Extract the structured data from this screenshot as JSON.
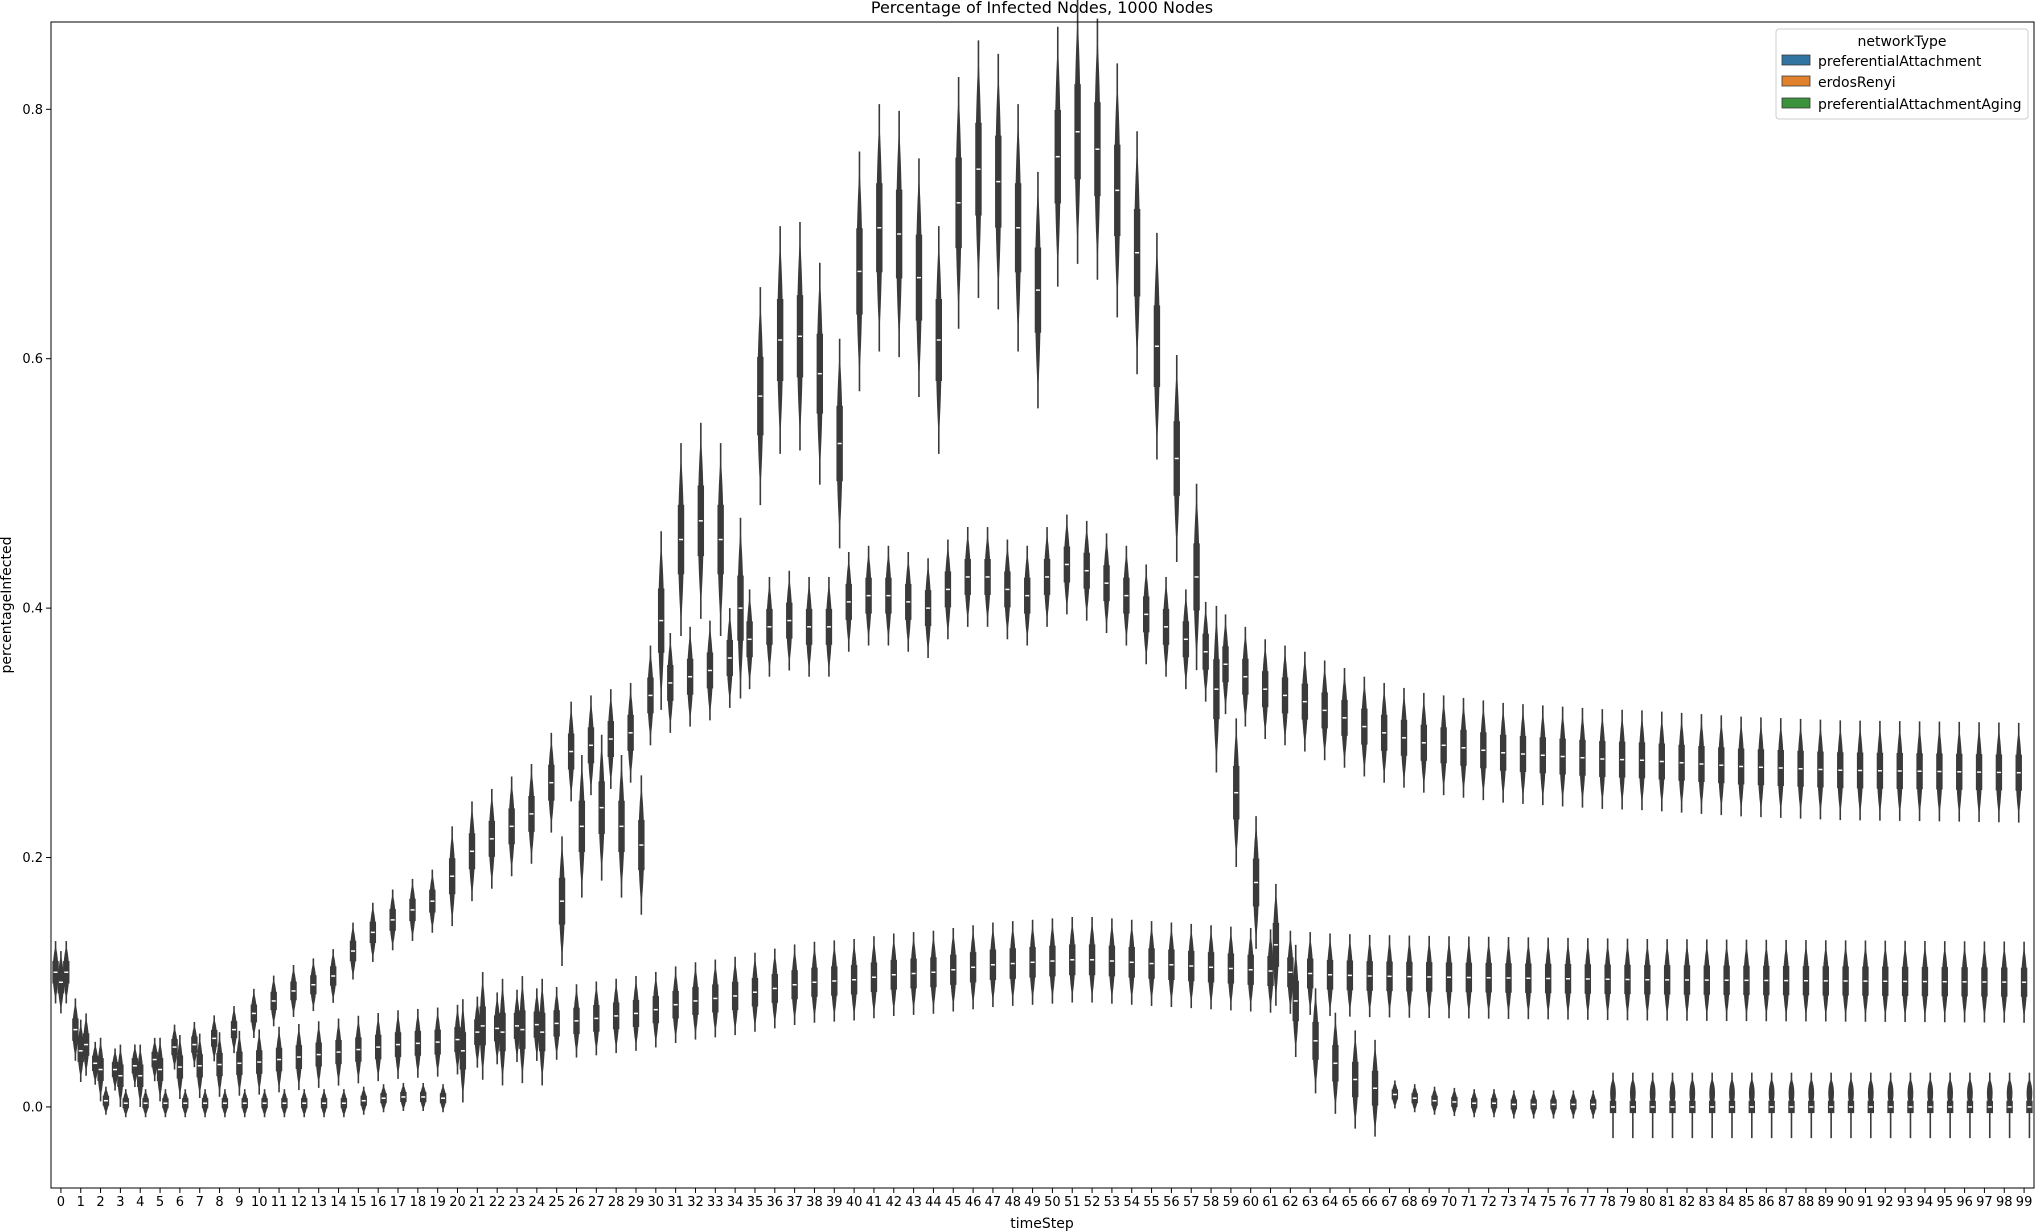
{
  "chart_data": {
    "type": "violin",
    "title": "Percentage of Infected Nodes, 1000 Nodes",
    "xlabel": "timeStep",
    "ylabel": "percentageInfected",
    "ylim": [
      -0.065,
      0.87
    ],
    "yticks": [
      "0.0",
      "0.2",
      "0.4",
      "0.6",
      "0.8"
    ],
    "ytick_values": [
      0.0,
      0.2,
      0.4,
      0.6,
      0.8
    ],
    "legend": {
      "title": "networkType",
      "placement": "top-right",
      "entries": [
        {
          "name": "preferentialAttachment",
          "color": "#3274a1"
        },
        {
          "name": "erdosRenyi",
          "color": "#e1812c"
        },
        {
          "name": "preferentialAttachmentAging",
          "color": "#3a923a"
        }
      ]
    },
    "violin_color": "#3a3a3a",
    "series": [
      {
        "name": "preferentialAttachment",
        "keyframes": [
          [
            0,
            0.108
          ],
          [
            1,
            0.062
          ],
          [
            2,
            0.035
          ],
          [
            3,
            0.03
          ],
          [
            4,
            0.033
          ],
          [
            5,
            0.038
          ],
          [
            6,
            0.048
          ],
          [
            7,
            0.05
          ],
          [
            8,
            0.055
          ],
          [
            9,
            0.062
          ],
          [
            10,
            0.075
          ],
          [
            11,
            0.085
          ],
          [
            12,
            0.093
          ],
          [
            13,
            0.098
          ],
          [
            14,
            0.105
          ],
          [
            15,
            0.125
          ],
          [
            16,
            0.14
          ],
          [
            17,
            0.15
          ],
          [
            18,
            0.158
          ],
          [
            19,
            0.165
          ],
          [
            20,
            0.185
          ],
          [
            21,
            0.205
          ],
          [
            22,
            0.215
          ],
          [
            23,
            0.225
          ],
          [
            24,
            0.235
          ],
          [
            25,
            0.26
          ],
          [
            26,
            0.285
          ],
          [
            27,
            0.29
          ],
          [
            28,
            0.295
          ],
          [
            29,
            0.3
          ],
          [
            30,
            0.33
          ],
          [
            31,
            0.34
          ],
          [
            32,
            0.345
          ],
          [
            33,
            0.35
          ],
          [
            34,
            0.36
          ],
          [
            35,
            0.375
          ],
          [
            36,
            0.385
          ],
          [
            37,
            0.39
          ],
          [
            38,
            0.385
          ],
          [
            39,
            0.385
          ],
          [
            40,
            0.405
          ],
          [
            41,
            0.41
          ],
          [
            42,
            0.41
          ],
          [
            43,
            0.405
          ],
          [
            44,
            0.4
          ],
          [
            45,
            0.415
          ],
          [
            46,
            0.425
          ],
          [
            47,
            0.425
          ],
          [
            48,
            0.415
          ],
          [
            49,
            0.41
          ],
          [
            50,
            0.425
          ],
          [
            51,
            0.435
          ],
          [
            52,
            0.43
          ],
          [
            53,
            0.42
          ],
          [
            54,
            0.41
          ],
          [
            55,
            0.395
          ],
          [
            56,
            0.385
          ],
          [
            57,
            0.375
          ],
          [
            58,
            0.365
          ],
          [
            59,
            0.355
          ],
          [
            60,
            0.345
          ],
          [
            61,
            0.335
          ],
          [
            62,
            0.33
          ],
          [
            63,
            0.325
          ],
          [
            64,
            0.318
          ],
          [
            65,
            0.312
          ],
          [
            66,
            0.305
          ],
          [
            67,
            0.3
          ],
          [
            68,
            0.296
          ],
          [
            69,
            0.292
          ],
          [
            70,
            0.29
          ],
          [
            71,
            0.288
          ],
          [
            72,
            0.286
          ],
          [
            73,
            0.284
          ],
          [
            74,
            0.283
          ],
          [
            75,
            0.282
          ],
          [
            76,
            0.281
          ],
          [
            77,
            0.28
          ],
          [
            78,
            0.279
          ],
          [
            80,
            0.278
          ],
          [
            85,
            0.273
          ],
          [
            90,
            0.27
          ],
          [
            95,
            0.269
          ],
          [
            99,
            0.268
          ]
        ]
      },
      {
        "name": "erdosRenyi",
        "keyframes": [
          [
            0,
            0.1
          ],
          [
            1,
            0.045
          ],
          [
            2,
            0.03
          ],
          [
            3,
            0.025
          ],
          [
            4,
            0.025
          ],
          [
            5,
            0.03
          ],
          [
            6,
            0.032
          ],
          [
            7,
            0.033
          ],
          [
            8,
            0.034
          ],
          [
            9,
            0.035
          ],
          [
            10,
            0.036
          ],
          [
            11,
            0.038
          ],
          [
            12,
            0.04
          ],
          [
            13,
            0.042
          ],
          [
            14,
            0.044
          ],
          [
            15,
            0.046
          ],
          [
            16,
            0.048
          ],
          [
            17,
            0.05
          ],
          [
            18,
            0.051
          ],
          [
            19,
            0.052
          ],
          [
            20,
            0.054
          ],
          [
            21,
            0.06
          ],
          [
            22,
            0.063
          ],
          [
            23,
            0.065
          ],
          [
            24,
            0.066
          ],
          [
            25,
            0.067
          ],
          [
            26,
            0.069
          ],
          [
            27,
            0.071
          ],
          [
            28,
            0.073
          ],
          [
            29,
            0.075
          ],
          [
            30,
            0.078
          ],
          [
            31,
            0.082
          ],
          [
            32,
            0.085
          ],
          [
            33,
            0.087
          ],
          [
            34,
            0.089
          ],
          [
            35,
            0.092
          ],
          [
            36,
            0.095
          ],
          [
            37,
            0.098
          ],
          [
            38,
            0.1
          ],
          [
            39,
            0.101
          ],
          [
            40,
            0.102
          ],
          [
            41,
            0.104
          ],
          [
            42,
            0.106
          ],
          [
            43,
            0.107
          ],
          [
            44,
            0.108
          ],
          [
            45,
            0.11
          ],
          [
            46,
            0.112
          ],
          [
            47,
            0.114
          ],
          [
            48,
            0.115
          ],
          [
            49,
            0.116
          ],
          [
            50,
            0.117
          ],
          [
            51,
            0.118
          ],
          [
            52,
            0.118
          ],
          [
            53,
            0.117
          ],
          [
            54,
            0.116
          ],
          [
            55,
            0.115
          ],
          [
            56,
            0.114
          ],
          [
            57,
            0.113
          ],
          [
            58,
            0.112
          ],
          [
            59,
            0.111
          ],
          [
            60,
            0.11
          ],
          [
            61,
            0.109
          ],
          [
            62,
            0.108
          ],
          [
            63,
            0.107
          ],
          [
            64,
            0.106
          ],
          [
            66,
            0.105
          ],
          [
            70,
            0.104
          ],
          [
            75,
            0.103
          ],
          [
            80,
            0.102
          ],
          [
            90,
            0.101
          ],
          [
            99,
            0.1
          ]
        ]
      },
      {
        "name": "preferentialAttachmentAging",
        "keyframes": [
          [
            0,
            0.108
          ],
          [
            1,
            0.05
          ],
          [
            2,
            0.005
          ],
          [
            3,
            0.003
          ],
          [
            4,
            0.003
          ],
          [
            5,
            0.003
          ],
          [
            6,
            0.003
          ],
          [
            7,
            0.003
          ],
          [
            8,
            0.003
          ],
          [
            9,
            0.003
          ],
          [
            10,
            0.003
          ],
          [
            11,
            0.003
          ],
          [
            12,
            0.003
          ],
          [
            13,
            0.003
          ],
          [
            14,
            0.003
          ],
          [
            15,
            0.005
          ],
          [
            16,
            0.007
          ],
          [
            17,
            0.008
          ],
          [
            18,
            0.008
          ],
          [
            19,
            0.007
          ],
          [
            20,
            0.045
          ],
          [
            21,
            0.065
          ],
          [
            22,
            0.06
          ],
          [
            23,
            0.062
          ],
          [
            24,
            0.06
          ],
          [
            25,
            0.165
          ],
          [
            26,
            0.225
          ],
          [
            27,
            0.24
          ],
          [
            28,
            0.225
          ],
          [
            29,
            0.21
          ],
          [
            30,
            0.39
          ],
          [
            31,
            0.455
          ],
          [
            32,
            0.47
          ],
          [
            33,
            0.455
          ],
          [
            34,
            0.4
          ],
          [
            35,
            0.57
          ],
          [
            36,
            0.615
          ],
          [
            37,
            0.618
          ],
          [
            38,
            0.588
          ],
          [
            39,
            0.532
          ],
          [
            40,
            0.67
          ],
          [
            41,
            0.705
          ],
          [
            42,
            0.7
          ],
          [
            43,
            0.665
          ],
          [
            44,
            0.615
          ],
          [
            45,
            0.725
          ],
          [
            46,
            0.752
          ],
          [
            47,
            0.742
          ],
          [
            48,
            0.705
          ],
          [
            49,
            0.655
          ],
          [
            50,
            0.762
          ],
          [
            51,
            0.782
          ],
          [
            52,
            0.768
          ],
          [
            53,
            0.735
          ],
          [
            54,
            0.685
          ],
          [
            55,
            0.61
          ],
          [
            56,
            0.52
          ],
          [
            57,
            0.425
          ],
          [
            58,
            0.335
          ],
          [
            59,
            0.252
          ],
          [
            60,
            0.18
          ],
          [
            61,
            0.13
          ],
          [
            62,
            0.085
          ],
          [
            63,
            0.053
          ],
          [
            64,
            0.035
          ],
          [
            65,
            0.022
          ],
          [
            66,
            0.015
          ],
          [
            67,
            0.01
          ],
          [
            68,
            0.007
          ],
          [
            69,
            0.005
          ],
          [
            70,
            0.004
          ],
          [
            71,
            0.003
          ],
          [
            72,
            0.003
          ],
          [
            73,
            0.002
          ],
          [
            74,
            0.002
          ],
          [
            75,
            0.002
          ],
          [
            76,
            0.002
          ],
          [
            77,
            0.002
          ],
          [
            78,
            0.0
          ],
          [
            99,
            0.0
          ]
        ]
      }
    ]
  }
}
